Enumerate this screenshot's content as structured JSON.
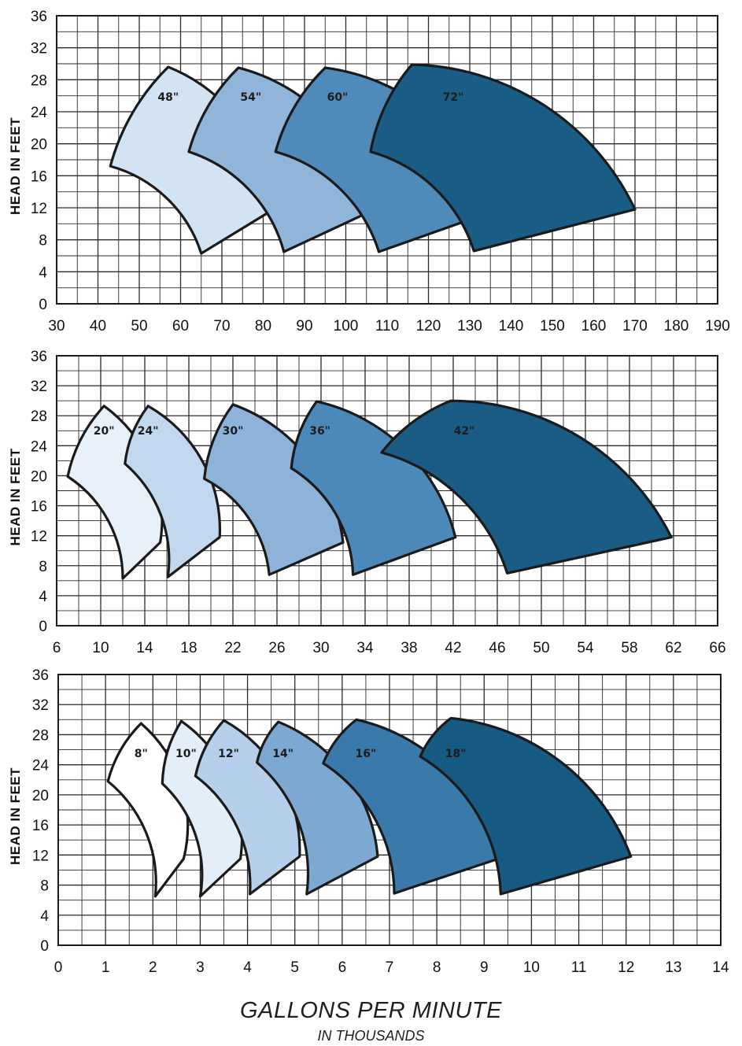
{
  "chart_data": [
    {
      "type": "area",
      "ylabel": "HEAD IN FEET",
      "xlim": [
        30,
        190
      ],
      "ylim": [
        0,
        36
      ],
      "x_ticks": [
        "30",
        "40",
        "50",
        "60",
        "70",
        "80",
        "90",
        "100",
        "110",
        "120",
        "130",
        "140",
        "150",
        "160",
        "170",
        "180",
        "190"
      ],
      "y_ticks": [
        "0",
        "4",
        "8",
        "12",
        "16",
        "20",
        "24",
        "28",
        "32",
        "36"
      ],
      "grid": true,
      "series": [
        {
          "name": "48\"",
          "color": "#d2e3f4",
          "label_pos": [
            57,
            25.4
          ],
          "points": [
            [
              57,
              29.6
            ],
            [
              82.5,
              11.8
            ],
            [
              65,
              6.3
            ],
            [
              43,
              17.2
            ]
          ]
        },
        {
          "name": "54\"",
          "color": "#8fb6d9",
          "label_pos": [
            77,
            25.4
          ],
          "points": [
            [
              74,
              29.5
            ],
            [
              107,
              11.8
            ],
            [
              85,
              6.5
            ],
            [
              62,
              19
            ]
          ]
        },
        {
          "name": "60\"",
          "color": "#4f8ab8",
          "label_pos": [
            98,
            25.4
          ],
          "points": [
            [
              95,
              29.5
            ],
            [
              137,
              11.8
            ],
            [
              108,
              6.5
            ],
            [
              83,
              19
            ]
          ]
        },
        {
          "name": "72\"",
          "color": "#1a5d85",
          "label_pos": [
            126,
            25.4
          ],
          "points": [
            [
              116,
              29.9
            ],
            [
              170,
              11.8
            ],
            [
              131,
              6.6
            ],
            [
              106,
              19
            ]
          ]
        }
      ]
    },
    {
      "type": "area",
      "ylabel": "HEAD IN FEET",
      "xlim": [
        6,
        66
      ],
      "ylim": [
        0,
        36
      ],
      "x_ticks": [
        "6",
        "10",
        "14",
        "18",
        "22",
        "26",
        "30",
        "34",
        "38",
        "42",
        "46",
        "50",
        "54",
        "58",
        "62",
        "66"
      ],
      "y_ticks": [
        "0",
        "4",
        "8",
        "12",
        "16",
        "20",
        "24",
        "28",
        "32",
        "36"
      ],
      "grid": true,
      "series": [
        {
          "name": "20\"",
          "color": "#e8f1fa",
          "label_pos": [
            10.3,
            25.5
          ],
          "points": [
            [
              10.3,
              29.3
            ],
            [
              15.4,
              11.1
            ],
            [
              12.0,
              6.3
            ],
            [
              7.0,
              19.9
            ]
          ]
        },
        {
          "name": "24\"",
          "color": "#c2d8ee",
          "label_pos": [
            14.3,
            25.5
          ],
          "points": [
            [
              14.3,
              29.3
            ],
            [
              20.8,
              11.8
            ],
            [
              16.1,
              6.5
            ],
            [
              12.2,
              21.6
            ]
          ]
        },
        {
          "name": "30\"",
          "color": "#8db4d8",
          "label_pos": [
            22.0,
            25.5
          ],
          "points": [
            [
              22.0,
              29.5
            ],
            [
              32.0,
              11.1
            ],
            [
              25.3,
              6.8
            ],
            [
              19.4,
              19.6
            ]
          ]
        },
        {
          "name": "36\"",
          "color": "#4d89b8",
          "label_pos": [
            29.9,
            25.5
          ],
          "points": [
            [
              29.6,
              29.9
            ],
            [
              42.2,
              11.8
            ],
            [
              32.9,
              6.8
            ],
            [
              27.3,
              21.0
            ]
          ]
        },
        {
          "name": "42\"",
          "color": "#1a5c84",
          "label_pos": [
            43.0,
            25.5
          ],
          "points": [
            [
              41.8,
              30.0
            ],
            [
              61.8,
              11.8
            ],
            [
              46.9,
              7.0
            ],
            [
              35.5,
              23.1
            ]
          ]
        }
      ]
    },
    {
      "type": "area",
      "ylabel": "HEAD IN FEET",
      "xlim": [
        0,
        14
      ],
      "ylim": [
        0,
        36
      ],
      "x_ticks": [
        "0",
        "1",
        "2",
        "3",
        "4",
        "5",
        "6",
        "7",
        "8",
        "9",
        "10",
        "11",
        "12",
        "13",
        "14"
      ],
      "y_ticks": [
        "0",
        "4",
        "8",
        "12",
        "16",
        "20",
        "24",
        "28",
        "32",
        "36"
      ],
      "grid": true,
      "series": [
        {
          "name": "8\"",
          "color": "#ffffff",
          "label_pos": [
            1.75,
            25.0
          ],
          "points": [
            [
              1.75,
              29.5
            ],
            [
              2.65,
              11.5
            ],
            [
              2.05,
              6.5
            ],
            [
              1.05,
              21.8
            ]
          ]
        },
        {
          "name": "10\"",
          "color": "#e4eef9",
          "label_pos": [
            2.7,
            25.0
          ],
          "points": [
            [
              2.6,
              29.8
            ],
            [
              3.85,
              11.5
            ],
            [
              3.0,
              6.5
            ],
            [
              2.2,
              21.5
            ]
          ]
        },
        {
          "name": "12\"",
          "color": "#b6d0eb",
          "label_pos": [
            3.6,
            25.0
          ],
          "points": [
            [
              3.5,
              29.9
            ],
            [
              5.1,
              11.8
            ],
            [
              4.05,
              6.8
            ],
            [
              2.9,
              22.5
            ]
          ]
        },
        {
          "name": "14\"",
          "color": "#7ca8d1",
          "label_pos": [
            4.75,
            25.0
          ],
          "points": [
            [
              4.65,
              29.7
            ],
            [
              6.75,
              11.8
            ],
            [
              5.25,
              6.8
            ],
            [
              4.2,
              24.3
            ]
          ]
        },
        {
          "name": "16\"",
          "color": "#3a7aaa",
          "label_pos": [
            6.5,
            25.0
          ],
          "points": [
            [
              6.3,
              30.0
            ],
            [
              9.3,
              11.5
            ],
            [
              7.1,
              6.9
            ],
            [
              5.6,
              24.2
            ]
          ]
        },
        {
          "name": "18\"",
          "color": "#175a82",
          "label_pos": [
            8.4,
            25.0
          ],
          "points": [
            [
              8.3,
              30.2
            ],
            [
              12.1,
              11.8
            ],
            [
              9.35,
              6.8
            ],
            [
              7.65,
              25.1
            ]
          ]
        }
      ]
    }
  ],
  "xaxis_title": "GALLONS PER MINUTE",
  "xaxis_subtitle": "IN THOUSANDS"
}
